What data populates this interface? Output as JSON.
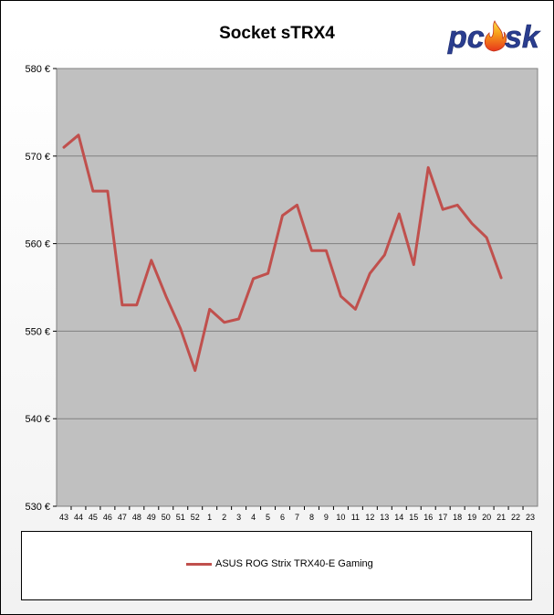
{
  "chart_data": {
    "type": "line",
    "title": "Socket sTRX4",
    "logo_text": "pcosk",
    "categories": [
      "43",
      "44",
      "45",
      "46",
      "47",
      "48",
      "49",
      "50",
      "51",
      "52",
      "1",
      "2",
      "3",
      "4",
      "5",
      "6",
      "7",
      "8",
      "9",
      "10",
      "11",
      "12",
      "13",
      "14",
      "15",
      "16",
      "17",
      "18",
      "19",
      "20",
      "21",
      "22",
      "23"
    ],
    "ylim": [
      530,
      580
    ],
    "y_ticks": [
      530,
      540,
      550,
      560,
      570,
      580
    ],
    "y_tick_labels": [
      "530 €",
      "540 €",
      "550 €",
      "560 €",
      "570 €",
      "580 €"
    ],
    "grid": true,
    "legend_position": "bottom",
    "series": [
      {
        "name": "ASUS ROG Strix TRX40-E Gaming",
        "color": "#c0504d",
        "values": [
          571.0,
          572.4,
          566.0,
          566.0,
          553.0,
          553.0,
          558.1,
          554.0,
          550.3,
          545.5,
          552.5,
          551.0,
          551.4,
          556.0,
          556.6,
          563.2,
          564.4,
          559.2,
          559.2,
          554.0,
          552.5,
          556.6,
          558.7,
          563.4,
          557.6,
          568.7,
          563.9,
          564.4,
          562.3,
          560.7,
          556.1,
          null,
          null
        ]
      }
    ]
  }
}
